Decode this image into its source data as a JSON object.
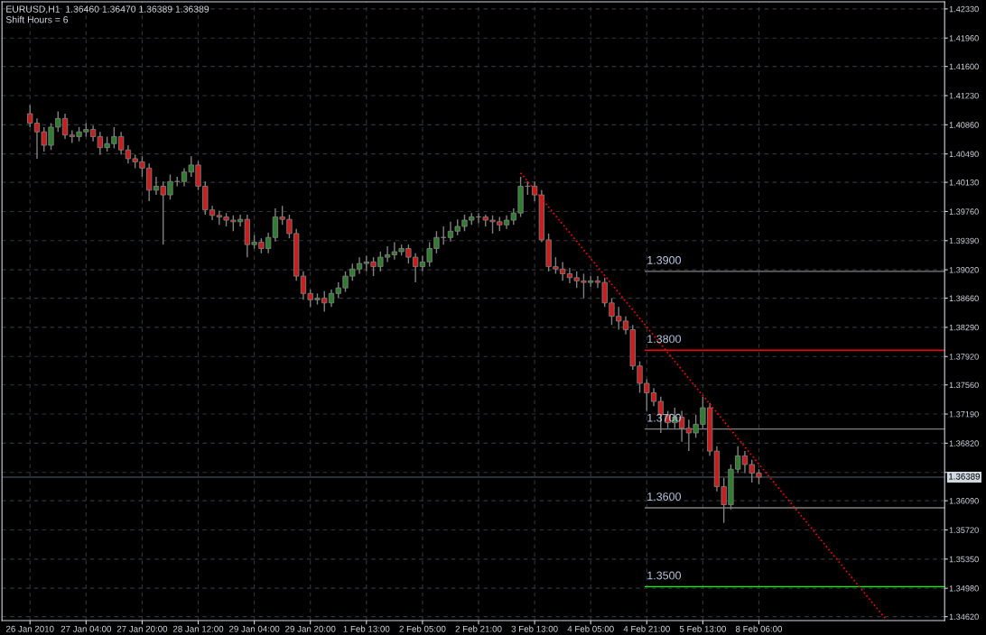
{
  "chart_data": {
    "type": "candlestick",
    "color": "#808080",
    "annotations": [
      "EURUSD,H1  1.36460 1.36470 1.36389 1.36389",
      "Shift Hours = 6"
    ],
    "categories": [
      "26 Jan 2010",
      null,
      null,
      null,
      null,
      null,
      null,
      null,
      "27 Jan 04:00",
      null,
      null,
      null,
      null,
      null,
      null,
      null,
      "27 Jan 20:00",
      null,
      null,
      null,
      null,
      null,
      null,
      null,
      "28 Jan 12:00",
      null,
      null,
      null,
      null,
      null,
      null,
      null,
      "29 Jan 04:00",
      null,
      null,
      null,
      null,
      null,
      null,
      null,
      "29 Jan 20:00",
      null,
      null,
      null,
      null,
      null,
      null,
      null,
      "1 Feb 13:00",
      null,
      null,
      null,
      null,
      null,
      null,
      null,
      "2 Feb 05:00",
      null,
      null,
      null,
      null,
      null,
      null,
      null,
      "2 Feb 21:00",
      null,
      null,
      null,
      null,
      null,
      null,
      null,
      "3 Feb 13:00",
      null,
      null,
      null,
      null,
      null,
      null,
      null,
      "4 Feb 05:00",
      null,
      null,
      null,
      null,
      null,
      null,
      null,
      "4 Feb 21:00",
      null,
      null,
      null,
      null,
      null,
      null,
      null,
      "5 Feb 13:00",
      null,
      null,
      null,
      null,
      null,
      null,
      null,
      "8 Feb 06:00",
      null,
      null,
      null,
      null,
      null,
      null,
      null,
      null,
      null,
      null,
      null,
      null,
      null,
      null,
      null,
      null,
      null,
      null,
      null,
      null,
      null,
      null,
      null,
      null,
      null,
      null
    ],
    "ohlc": [
      [
        1.41,
        1.4111,
        1.4083,
        1.4088
      ],
      [
        1.4088,
        1.4094,
        1.4043,
        1.4077
      ],
      [
        1.4077,
        1.4083,
        1.4052,
        1.406
      ],
      [
        1.406,
        1.4088,
        1.4054,
        1.4083
      ],
      [
        1.4083,
        1.4103,
        1.4077,
        1.4094
      ],
      [
        1.4094,
        1.41,
        1.4068,
        1.4073
      ],
      [
        1.4073,
        1.4079,
        1.4063,
        1.4071
      ],
      [
        1.4071,
        1.4083,
        1.4065,
        1.4077
      ],
      [
        1.4077,
        1.4088,
        1.4071,
        1.408
      ],
      [
        1.408,
        1.4085,
        1.4065,
        1.4071
      ],
      [
        1.4071,
        1.4077,
        1.4048,
        1.4057
      ],
      [
        1.4057,
        1.4071,
        1.4052,
        1.4062
      ],
      [
        1.4062,
        1.4083,
        1.4056,
        1.4071
      ],
      [
        1.4071,
        1.4077,
        1.4048,
        1.4054
      ],
      [
        1.4054,
        1.406,
        1.4037,
        1.4043
      ],
      [
        1.4043,
        1.4048,
        1.4031,
        1.4039
      ],
      [
        1.4039,
        1.4046,
        1.402,
        1.4031
      ],
      [
        1.4031,
        1.4037,
        1.3989,
        1.4003
      ],
      [
        1.4003,
        1.402,
        1.3997,
        1.4008
      ],
      [
        1.4008,
        1.4014,
        1.3934,
        1.3997
      ],
      [
        1.3997,
        1.4023,
        1.3991,
        1.4014
      ],
      [
        1.4014,
        1.402,
        1.4008,
        1.4014
      ],
      [
        1.4014,
        1.4031,
        1.4008,
        1.4026
      ],
      [
        1.4026,
        1.4046,
        1.402,
        1.4035
      ],
      [
        1.4035,
        1.404,
        1.4003,
        1.4008
      ],
      [
        1.4008,
        1.4014,
        1.3972,
        1.3978
      ],
      [
        1.3978,
        1.3983,
        1.3965,
        1.3971
      ],
      [
        1.3971,
        1.3977,
        1.3959,
        1.3969
      ],
      [
        1.3969,
        1.3974,
        1.3957,
        1.3965
      ],
      [
        1.3965,
        1.3971,
        1.3951,
        1.3963
      ],
      [
        1.3963,
        1.3972,
        1.3957,
        1.3966
      ],
      [
        1.3966,
        1.3972,
        1.3918,
        1.3934
      ],
      [
        1.3934,
        1.3946,
        1.3929,
        1.3937
      ],
      [
        1.3937,
        1.3942,
        1.3923,
        1.3929
      ],
      [
        1.3929,
        1.3949,
        1.3923,
        1.3943
      ],
      [
        1.3943,
        1.398,
        1.3938,
        1.3969
      ],
      [
        1.3969,
        1.3983,
        1.3959,
        1.3966
      ],
      [
        1.3966,
        1.3972,
        1.3942,
        1.3948
      ],
      [
        1.3948,
        1.3954,
        1.3888,
        1.3894
      ],
      [
        1.3894,
        1.39,
        1.3864,
        1.3872
      ],
      [
        1.3872,
        1.3877,
        1.3855,
        1.3864
      ],
      [
        1.3864,
        1.3872,
        1.3858,
        1.3866
      ],
      [
        1.3866,
        1.3875,
        1.3849,
        1.386
      ],
      [
        1.386,
        1.3877,
        1.3855,
        1.3872
      ],
      [
        1.3872,
        1.3886,
        1.3866,
        1.3879
      ],
      [
        1.3879,
        1.39,
        1.3874,
        1.3894
      ],
      [
        1.3894,
        1.391,
        1.3888,
        1.3903
      ],
      [
        1.3903,
        1.3918,
        1.3897,
        1.391
      ],
      [
        1.391,
        1.392,
        1.39,
        1.3912
      ],
      [
        1.3912,
        1.3918,
        1.3894,
        1.3906
      ],
      [
        1.3906,
        1.3925,
        1.39,
        1.3918
      ],
      [
        1.3918,
        1.3932,
        1.3912,
        1.3921
      ],
      [
        1.3921,
        1.3937,
        1.3915,
        1.3925
      ],
      [
        1.3925,
        1.3934,
        1.392,
        1.3929
      ],
      [
        1.3929,
        1.3934,
        1.391,
        1.3918
      ],
      [
        1.3918,
        1.3923,
        1.3886,
        1.3906
      ],
      [
        1.3906,
        1.392,
        1.39,
        1.3912
      ],
      [
        1.3912,
        1.3937,
        1.3906,
        1.3929
      ],
      [
        1.3929,
        1.3951,
        1.3923,
        1.3943
      ],
      [
        1.3943,
        1.3957,
        1.3934,
        1.3943
      ],
      [
        1.3943,
        1.3963,
        1.3938,
        1.3951
      ],
      [
        1.3951,
        1.3966,
        1.3946,
        1.3957
      ],
      [
        1.3957,
        1.3972,
        1.3951,
        1.3965
      ],
      [
        1.3965,
        1.3974,
        1.3959,
        1.3969
      ],
      [
        1.3969,
        1.3974,
        1.3961,
        1.3969
      ],
      [
        1.3969,
        1.3972,
        1.3957,
        1.3965
      ],
      [
        1.3965,
        1.3971,
        1.3948,
        1.3963
      ],
      [
        1.3963,
        1.3969,
        1.3951,
        1.3959
      ],
      [
        1.3959,
        1.3971,
        1.3954,
        1.3965
      ],
      [
        1.3965,
        1.398,
        1.3959,
        1.3974
      ],
      [
        1.3974,
        1.402,
        1.3969,
        1.4008
      ],
      [
        1.4008,
        1.4014,
        1.3997,
        1.4008
      ],
      [
        1.4008,
        1.4014,
        1.3989,
        1.3997
      ],
      [
        1.3997,
        1.4003,
        1.3937,
        1.394
      ],
      [
        1.394,
        1.3948,
        1.39,
        1.3906
      ],
      [
        1.3906,
        1.3918,
        1.3897,
        1.3903
      ],
      [
        1.3903,
        1.3912,
        1.3888,
        1.3897
      ],
      [
        1.3897,
        1.3904,
        1.3885,
        1.3892
      ],
      [
        1.3892,
        1.39,
        1.3879,
        1.3888
      ],
      [
        1.3888,
        1.3897,
        1.3866,
        1.3886
      ],
      [
        1.3886,
        1.3894,
        1.388,
        1.3888
      ],
      [
        1.3888,
        1.3894,
        1.3879,
        1.3886
      ],
      [
        1.3886,
        1.3892,
        1.3855,
        1.386
      ],
      [
        1.386,
        1.3866,
        1.3832,
        1.3843
      ],
      [
        1.3843,
        1.3855,
        1.3826,
        1.3837
      ],
      [
        1.3837,
        1.3843,
        1.382,
        1.3826
      ],
      [
        1.3826,
        1.3832,
        1.3775,
        1.378
      ],
      [
        1.378,
        1.3786,
        1.3746,
        1.3758
      ],
      [
        1.3758,
        1.3763,
        1.3723,
        1.3746
      ],
      [
        1.3746,
        1.3752,
        1.3729,
        1.3735
      ],
      [
        1.3735,
        1.3741,
        1.3695,
        1.3718
      ],
      [
        1.3718,
        1.3723,
        1.3701,
        1.3708
      ],
      [
        1.3708,
        1.3727,
        1.3701,
        1.3715
      ],
      [
        1.3715,
        1.3723,
        1.3684,
        1.3701
      ],
      [
        1.3701,
        1.3712,
        1.3672,
        1.3695
      ],
      [
        1.3695,
        1.3718,
        1.3689,
        1.3706
      ],
      [
        1.3706,
        1.3741,
        1.3701,
        1.3727
      ],
      [
        1.3727,
        1.3733,
        1.3666,
        1.3672
      ],
      [
        1.3672,
        1.3678,
        1.3621,
        1.3627
      ],
      [
        1.3627,
        1.3638,
        1.3581,
        1.3604
      ],
      [
        1.3604,
        1.3655,
        1.3598,
        1.3649
      ],
      [
        1.3649,
        1.3678,
        1.3644,
        1.3666
      ],
      [
        1.3666,
        1.3672,
        1.3644,
        1.3655
      ],
      [
        1.3655,
        1.3661,
        1.3632,
        1.3644
      ],
      [
        1.3644,
        1.3649,
        1.363,
        1.3639
      ],
      null,
      null,
      null,
      null,
      null,
      null,
      null,
      null,
      null,
      null,
      null,
      null,
      null,
      null,
      null,
      null,
      null,
      null,
      null,
      null,
      null,
      null,
      null,
      null,
      null,
      null
    ],
    "series": [
      {
        "type": "line",
        "color": "#ff0000",
        "line_style": "dotted",
        "values": [
          null,
          null,
          null,
          null,
          null,
          null,
          null,
          null,
          null,
          null,
          null,
          null,
          null,
          null,
          null,
          null,
          null,
          null,
          null,
          null,
          null,
          null,
          null,
          null,
          null,
          null,
          null,
          null,
          null,
          null,
          null,
          null,
          null,
          null,
          null,
          null,
          null,
          null,
          null,
          null,
          null,
          null,
          null,
          null,
          null,
          null,
          null,
          null,
          null,
          null,
          null,
          null,
          null,
          null,
          null,
          null,
          null,
          null,
          null,
          null,
          null,
          null,
          null,
          null,
          null,
          null,
          null,
          null,
          null,
          null,
          1.4025,
          null,
          null,
          null,
          null,
          null,
          null,
          null,
          null,
          null,
          null,
          null,
          null,
          null,
          null,
          null,
          null,
          null,
          null,
          null,
          null,
          null,
          null,
          null,
          null,
          null,
          null,
          null,
          null,
          null,
          null,
          null,
          null,
          null,
          null,
          null,
          null,
          null,
          null,
          null,
          null,
          null,
          null,
          null,
          null,
          null,
          null,
          null,
          null,
          null,
          null,
          null,
          1.346,
          null,
          null,
          null,
          null,
          null,
          null,
          null,
          null
        ]
      }
    ],
    "ref_lines": [
      {
        "axis": "y",
        "value": 1.39,
        "label": "1.3900",
        "color": "#808080"
      },
      {
        "axis": "y",
        "value": 1.38,
        "label": "1.3800",
        "color": "#ff0000"
      },
      {
        "axis": "y",
        "value": 1.37,
        "label": "1.3700",
        "color": "#808080"
      },
      {
        "axis": "y",
        "value": 1.36,
        "label": "1.3600",
        "color": "#808080"
      },
      {
        "axis": "y",
        "value": 1.35,
        "label": "1.3500",
        "color": "#00ff00"
      },
      {
        "axis": "y",
        "value": 1.36389,
        "label": "1.36389",
        "color": "#3a3f4a"
      }
    ],
    "ylim": [
      1.3457,
      1.4242
    ],
    "yticks": [
      {
        "value": 1.4233,
        "label": "1.42330"
      },
      {
        "value": 1.4196,
        "label": "1.41960"
      },
      {
        "value": 1.416,
        "label": "1.41600"
      },
      {
        "value": 1.4123,
        "label": "1.41230"
      },
      {
        "value": 1.4086,
        "label": "1.40860"
      },
      {
        "value": 1.4049,
        "label": "1.40490"
      },
      {
        "value": 1.4013,
        "label": "1.40130"
      },
      {
        "value": 1.3976,
        "label": "1.39760"
      },
      {
        "value": 1.3939,
        "label": "1.39390"
      },
      {
        "value": 1.3902,
        "label": "1.39020"
      },
      {
        "value": 1.3866,
        "label": "1.38660"
      },
      {
        "value": 1.3829,
        "label": "1.38290"
      },
      {
        "value": 1.3792,
        "label": "1.37920"
      },
      {
        "value": 1.3756,
        "label": "1.37560"
      },
      {
        "value": 1.3719,
        "label": "1.37190"
      },
      {
        "value": 1.3682,
        "label": "1.36820"
      },
      {
        "value": 1.3645,
        "label": null
      },
      {
        "value": 1.3609,
        "label": "1.36090"
      },
      {
        "value": 1.3572,
        "label": "1.35720"
      },
      {
        "value": 1.3535,
        "label": "1.35350"
      },
      {
        "value": 1.3498,
        "label": "1.34980"
      },
      {
        "value": 1.3462,
        "label": "1.34620"
      }
    ],
    "grid": true
  }
}
